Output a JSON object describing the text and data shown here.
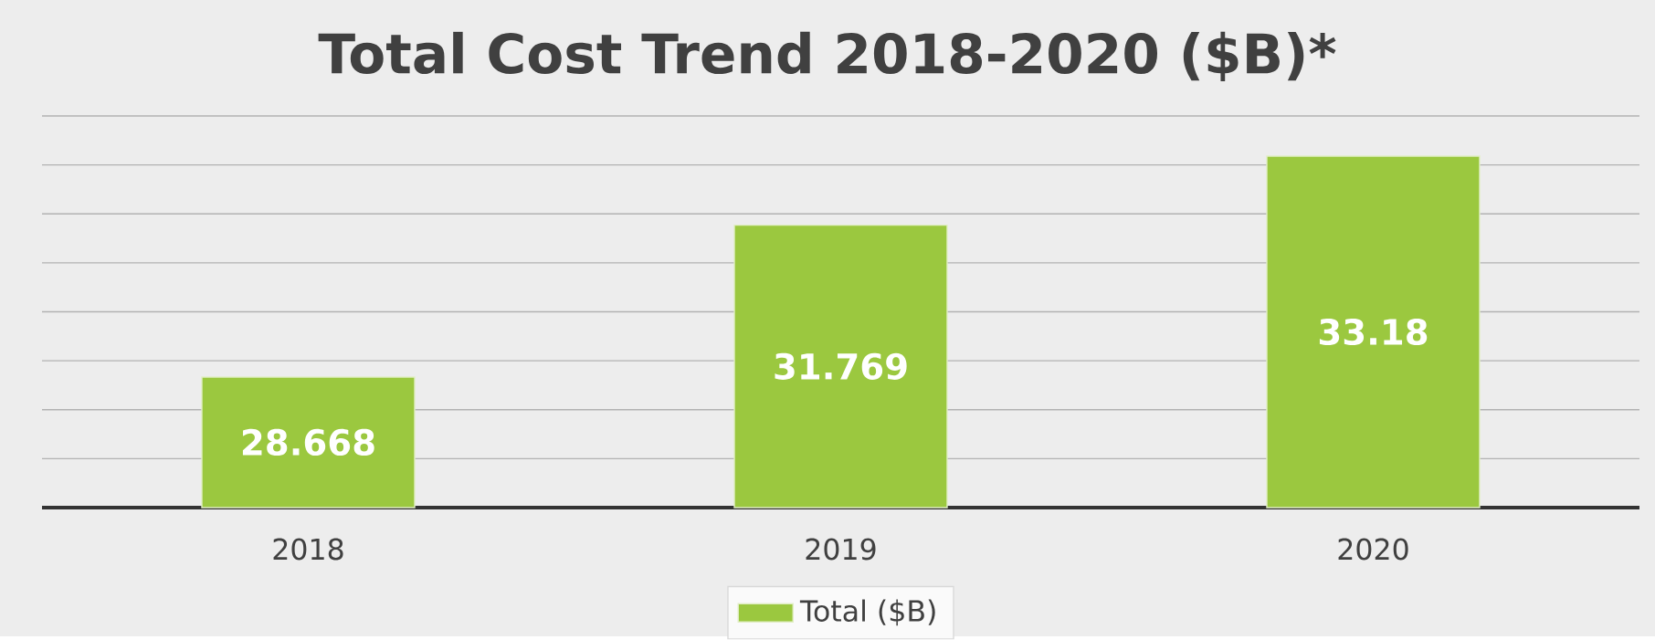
{
  "chart_data": {
    "type": "bar",
    "title": "Total Cost Trend 2018-2020 ($B)*",
    "categories": [
      "2018",
      "2019",
      "2020"
    ],
    "series": [
      {
        "name": "Total ($B)",
        "color": "#9bc83f",
        "values": [
          28.668,
          31.769,
          33.18
        ]
      }
    ],
    "ylim": [
      26,
      34
    ],
    "yticks": [
      {
        "value": 26,
        "label": null
      },
      {
        "value": 27,
        "label": null
      },
      {
        "value": 28,
        "label": null
      },
      {
        "value": 29,
        "label": null
      },
      {
        "value": 30,
        "label": null
      },
      {
        "value": 31,
        "label": null
      },
      {
        "value": 32,
        "label": null
      },
      {
        "value": 33,
        "label": null
      },
      {
        "value": 34,
        "label": null
      }
    ],
    "grid": "y",
    "legend": "bottom",
    "tick_labels": "x",
    "data_labels": true
  }
}
